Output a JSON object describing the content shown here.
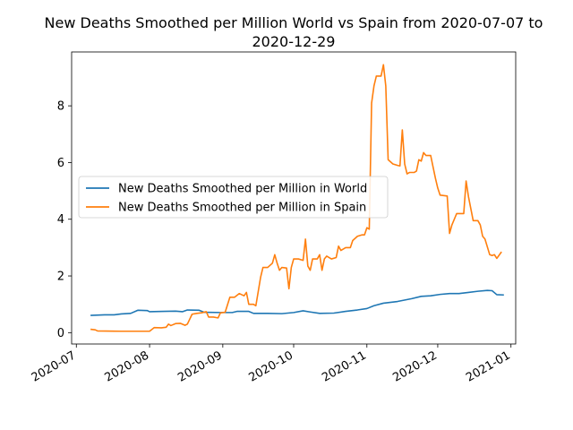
{
  "chart_data": {
    "type": "line",
    "title_line1": "New Deaths Smoothed per Million World vs Spain from 2020-07-07 to",
    "title_line2": "2020-12-29",
    "xlabel": "",
    "ylabel": "",
    "x_range": [
      "2020-06-29",
      "2021-01-03"
    ],
    "ylim": [
      -0.4,
      9.9
    ],
    "grid": false,
    "legend_position": "center-left",
    "x_ticks": [
      {
        "date": "2020-07-01",
        "label": "2020-07"
      },
      {
        "date": "2020-08-01",
        "label": "2020-08"
      },
      {
        "date": "2020-09-01",
        "label": "2020-09"
      },
      {
        "date": "2020-10-01",
        "label": "2020-10"
      },
      {
        "date": "2020-11-01",
        "label": "2020-11"
      },
      {
        "date": "2020-12-01",
        "label": "2020-12"
      },
      {
        "date": "2021-01-01",
        "label": "2021-01"
      }
    ],
    "y_ticks": [
      0,
      2,
      4,
      6,
      8
    ],
    "series": [
      {
        "name": "New Deaths Smoothed per Million in World",
        "color": "#1f77b4",
        "points": [
          [
            "2020-07-07",
            0.61
          ],
          [
            "2020-07-13",
            0.63
          ],
          [
            "2020-07-17",
            0.63
          ],
          [
            "2020-07-20",
            0.66
          ],
          [
            "2020-07-24",
            0.68
          ],
          [
            "2020-07-27",
            0.79
          ],
          [
            "2020-07-31",
            0.78
          ],
          [
            "2020-08-01",
            0.74
          ],
          [
            "2020-08-07",
            0.75
          ],
          [
            "2020-08-12",
            0.76
          ],
          [
            "2020-08-15",
            0.74
          ],
          [
            "2020-08-17",
            0.8
          ],
          [
            "2020-08-22",
            0.79
          ],
          [
            "2020-08-24",
            0.72
          ],
          [
            "2020-08-31",
            0.71
          ],
          [
            "2020-09-05",
            0.71
          ],
          [
            "2020-09-07",
            0.75
          ],
          [
            "2020-09-12",
            0.75
          ],
          [
            "2020-09-14",
            0.68
          ],
          [
            "2020-09-20",
            0.68
          ],
          [
            "2020-09-26",
            0.67
          ],
          [
            "2020-10-01",
            0.71
          ],
          [
            "2020-10-05",
            0.77
          ],
          [
            "2020-10-08",
            0.73
          ],
          [
            "2020-10-12",
            0.68
          ],
          [
            "2020-10-18",
            0.69
          ],
          [
            "2020-10-23",
            0.75
          ],
          [
            "2020-10-28",
            0.8
          ],
          [
            "2020-11-01",
            0.85
          ],
          [
            "2020-11-04",
            0.95
          ],
          [
            "2020-11-08",
            1.04
          ],
          [
            "2020-11-14",
            1.1
          ],
          [
            "2020-11-20",
            1.2
          ],
          [
            "2020-11-24",
            1.28
          ],
          [
            "2020-11-28",
            1.3
          ],
          [
            "2020-12-02",
            1.35
          ],
          [
            "2020-12-06",
            1.38
          ],
          [
            "2020-12-10",
            1.38
          ],
          [
            "2020-12-14",
            1.42
          ],
          [
            "2020-12-18",
            1.46
          ],
          [
            "2020-12-22",
            1.49
          ],
          [
            "2020-12-24",
            1.48
          ],
          [
            "2020-12-26",
            1.34
          ],
          [
            "2020-12-29",
            1.33
          ]
        ]
      },
      {
        "name": "New Deaths Smoothed per Million in Spain",
        "color": "#ff7f0e",
        "points": [
          [
            "2020-07-07",
            0.12
          ],
          [
            "2020-07-09",
            0.1
          ],
          [
            "2020-07-10",
            0.06
          ],
          [
            "2020-07-20",
            0.05
          ],
          [
            "2020-07-31",
            0.05
          ],
          [
            "2020-08-01",
            0.05
          ],
          [
            "2020-08-03",
            0.18
          ],
          [
            "2020-08-06",
            0.17
          ],
          [
            "2020-08-08",
            0.19
          ],
          [
            "2020-08-09",
            0.3
          ],
          [
            "2020-08-10",
            0.25
          ],
          [
            "2020-08-12",
            0.32
          ],
          [
            "2020-08-14",
            0.33
          ],
          [
            "2020-08-16",
            0.26
          ],
          [
            "2020-08-17",
            0.3
          ],
          [
            "2020-08-19",
            0.65
          ],
          [
            "2020-08-21",
            0.68
          ],
          [
            "2020-08-23",
            0.7
          ],
          [
            "2020-08-25",
            0.74
          ],
          [
            "2020-08-26",
            0.55
          ],
          [
            "2020-08-28",
            0.55
          ],
          [
            "2020-08-30",
            0.52
          ],
          [
            "2020-08-31",
            0.7
          ],
          [
            "2020-09-02",
            0.72
          ],
          [
            "2020-09-04",
            1.25
          ],
          [
            "2020-09-06",
            1.25
          ],
          [
            "2020-09-08",
            1.38
          ],
          [
            "2020-09-10",
            1.3
          ],
          [
            "2020-09-11",
            1.42
          ],
          [
            "2020-09-12",
            1.0
          ],
          [
            "2020-09-14",
            1.0
          ],
          [
            "2020-09-15",
            0.95
          ],
          [
            "2020-09-17",
            1.95
          ],
          [
            "2020-09-18",
            2.3
          ],
          [
            "2020-09-20",
            2.3
          ],
          [
            "2020-09-22",
            2.45
          ],
          [
            "2020-09-23",
            2.75
          ],
          [
            "2020-09-24",
            2.45
          ],
          [
            "2020-09-25",
            2.2
          ],
          [
            "2020-09-26",
            2.3
          ],
          [
            "2020-09-28",
            2.28
          ],
          [
            "2020-09-29",
            1.55
          ],
          [
            "2020-09-30",
            2.3
          ],
          [
            "2020-10-01",
            2.6
          ],
          [
            "2020-10-03",
            2.6
          ],
          [
            "2020-10-05",
            2.55
          ],
          [
            "2020-10-06",
            3.3
          ],
          [
            "2020-10-07",
            2.35
          ],
          [
            "2020-10-08",
            2.2
          ],
          [
            "2020-10-09",
            2.6
          ],
          [
            "2020-10-11",
            2.6
          ],
          [
            "2020-10-12",
            2.75
          ],
          [
            "2020-10-13",
            2.2
          ],
          [
            "2020-10-14",
            2.6
          ],
          [
            "2020-10-15",
            2.7
          ],
          [
            "2020-10-17",
            2.6
          ],
          [
            "2020-10-19",
            2.65
          ],
          [
            "2020-10-20",
            3.05
          ],
          [
            "2020-10-21",
            2.9
          ],
          [
            "2020-10-23",
            3.0
          ],
          [
            "2020-10-25",
            3.0
          ],
          [
            "2020-10-26",
            3.25
          ],
          [
            "2020-10-28",
            3.4
          ],
          [
            "2020-10-30",
            3.45
          ],
          [
            "2020-10-31",
            3.45
          ],
          [
            "2020-11-01",
            3.7
          ],
          [
            "2020-11-02",
            3.65
          ],
          [
            "2020-11-03",
            8.1
          ],
          [
            "2020-11-04",
            8.7
          ],
          [
            "2020-11-05",
            9.05
          ],
          [
            "2020-11-07",
            9.05
          ],
          [
            "2020-11-08",
            9.45
          ],
          [
            "2020-11-09",
            8.7
          ],
          [
            "2020-11-10",
            6.1
          ],
          [
            "2020-11-12",
            5.95
          ],
          [
            "2020-11-14",
            5.9
          ],
          [
            "2020-11-15",
            5.88
          ],
          [
            "2020-11-16",
            7.15
          ],
          [
            "2020-11-17",
            5.95
          ],
          [
            "2020-11-18",
            5.6
          ],
          [
            "2020-11-19",
            5.65
          ],
          [
            "2020-11-21",
            5.65
          ],
          [
            "2020-11-22",
            5.7
          ],
          [
            "2020-11-23",
            6.1
          ],
          [
            "2020-11-24",
            6.05
          ],
          [
            "2020-11-25",
            6.35
          ],
          [
            "2020-11-26",
            6.25
          ],
          [
            "2020-11-28",
            6.25
          ],
          [
            "2020-11-29",
            5.85
          ],
          [
            "2020-11-30",
            5.45
          ],
          [
            "2020-12-01",
            5.1
          ],
          [
            "2020-12-02",
            4.85
          ],
          [
            "2020-12-05",
            4.82
          ],
          [
            "2020-12-06",
            3.5
          ],
          [
            "2020-12-07",
            3.8
          ],
          [
            "2020-12-09",
            4.2
          ],
          [
            "2020-12-12",
            4.2
          ],
          [
            "2020-12-13",
            5.35
          ],
          [
            "2020-12-14",
            4.8
          ],
          [
            "2020-12-16",
            3.95
          ],
          [
            "2020-12-18",
            3.95
          ],
          [
            "2020-12-19",
            3.8
          ],
          [
            "2020-12-20",
            3.4
          ],
          [
            "2020-12-21",
            3.3
          ],
          [
            "2020-12-23",
            2.75
          ],
          [
            "2020-12-24",
            2.72
          ],
          [
            "2020-12-25",
            2.75
          ],
          [
            "2020-12-26",
            2.62
          ],
          [
            "2020-12-28",
            2.85
          ]
        ]
      }
    ]
  }
}
